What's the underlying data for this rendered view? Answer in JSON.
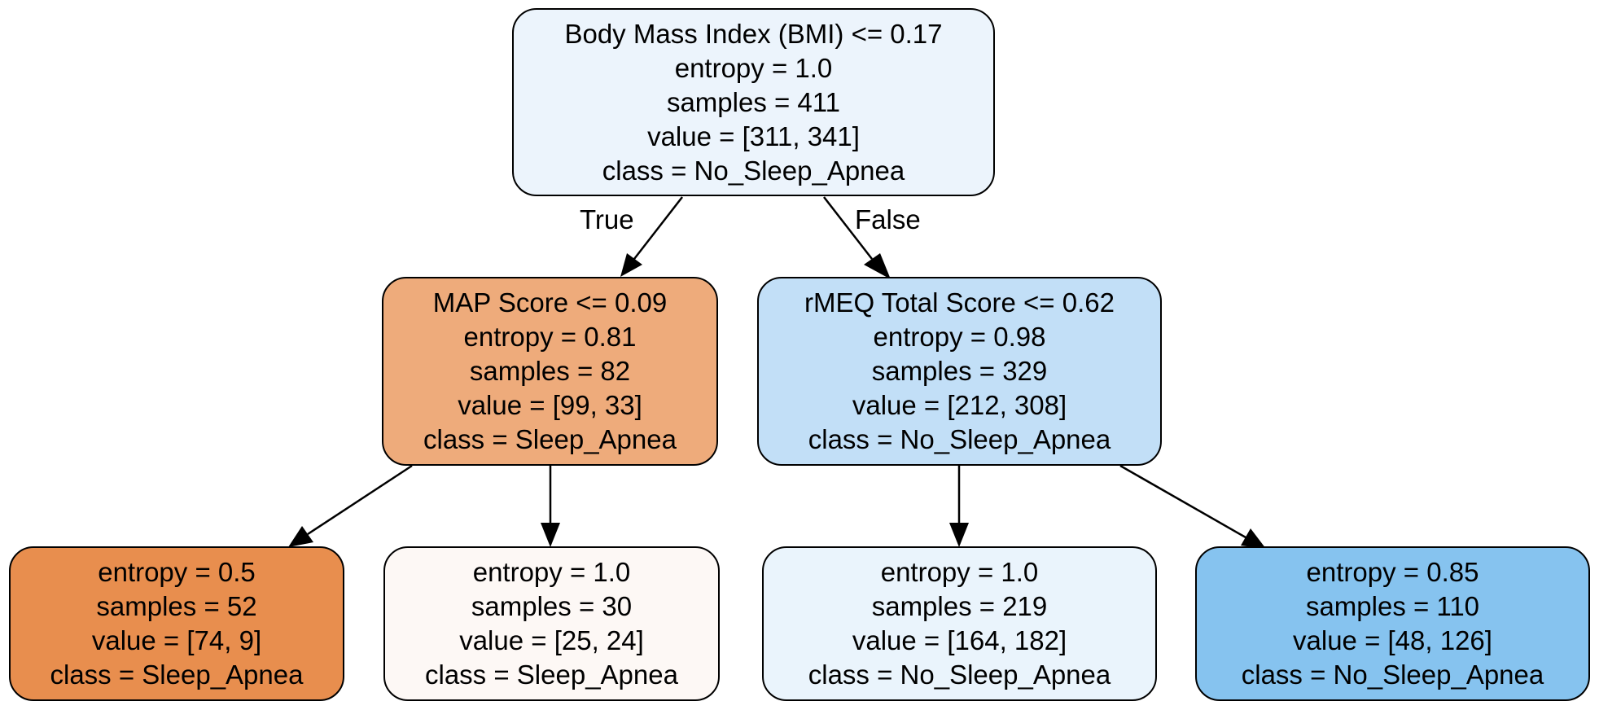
{
  "colors": {
    "root": "#ecf4fc",
    "left": "#eeab7b",
    "right": "#c2dff7",
    "ll": "#e88e4e",
    "lr": "#fdf8f5",
    "rl": "#eaf4fc",
    "rr": "#86c3ef",
    "edge": "#000000"
  },
  "edges": {
    "true_label": "True",
    "false_label": "False"
  },
  "nodes": {
    "root": {
      "condition": "Body Mass Index (BMI) <= 0.17",
      "entropy": "entropy = 1.0",
      "samples": "samples = 411",
      "value": "value = [311, 341]",
      "class": "class = No_Sleep_Apnea"
    },
    "left": {
      "condition": "MAP Score <= 0.09",
      "entropy": "entropy = 0.81",
      "samples": "samples = 82",
      "value": "value = [99, 33]",
      "class": "class = Sleep_Apnea"
    },
    "right": {
      "condition": "rMEQ Total Score <= 0.62",
      "entropy": "entropy = 0.98",
      "samples": "samples = 329",
      "value": "value = [212, 308]",
      "class": "class = No_Sleep_Apnea"
    },
    "ll": {
      "entropy": "entropy = 0.5",
      "samples": "samples = 52",
      "value": "value = [74, 9]",
      "class": "class = Sleep_Apnea"
    },
    "lr": {
      "entropy": "entropy = 1.0",
      "samples": "samples = 30",
      "value": "value = [25, 24]",
      "class": "class = Sleep_Apnea"
    },
    "rl": {
      "entropy": "entropy = 1.0",
      "samples": "samples = 219",
      "value": "value = [164, 182]",
      "class": "class = No_Sleep_Apnea"
    },
    "rr": {
      "entropy": "entropy = 0.85",
      "samples": "samples = 110",
      "value": "value = [48, 126]",
      "class": "class = No_Sleep_Apnea"
    }
  }
}
